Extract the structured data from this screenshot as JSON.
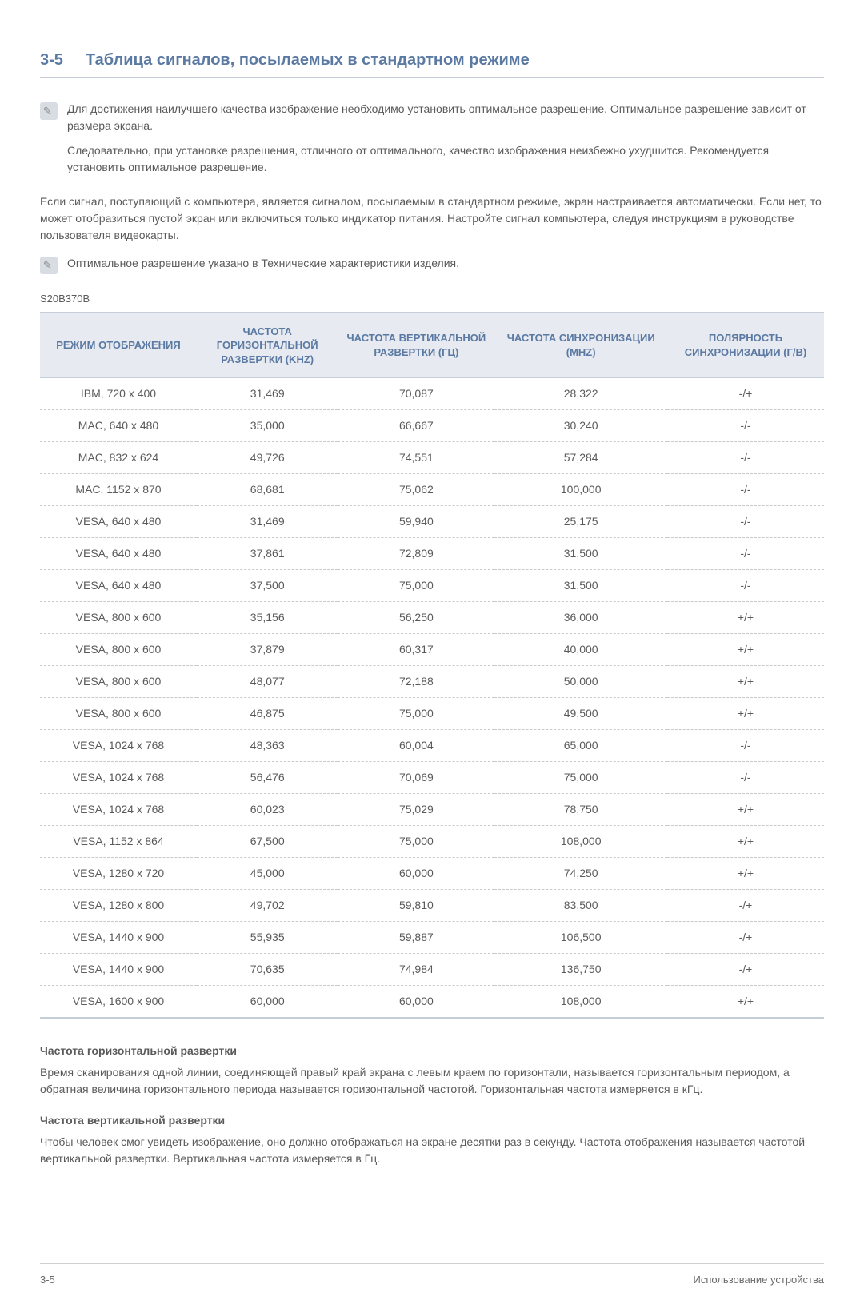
{
  "header": {
    "number": "3-5",
    "title": "Таблица сигналов, посылаемых в стандартном режиме"
  },
  "note1": {
    "p1": "Для достижения наилучшего качества изображение необходимо установить оптимальное разрешение. Оптимальное разрешение зависит от размера экрана.",
    "p2": "Следовательно, при установке разрешения, отличного от оптимального, качество изображения неизбежно ухудшится. Рекомендуется установить оптимальное разрешение."
  },
  "para1": "Если сигнал, поступающий с компьютера, является сигналом, посылаемым в стандартном режиме, экран настраивается автоматически. Если нет, то может отобразиться пустой экран или включиться только индикатор питания. Настройте сигнал компьютера, следуя инструкциям в руководстве пользователя видеокарты.",
  "note2": "Оптимальное разрешение указано в Технические характеристики изделия.",
  "model": "S20B370B",
  "table": {
    "columns": [
      "РЕЖИМ ОТОБРАЖЕНИЯ",
      "ЧАСТОТА ГОРИЗОНТАЛЬНОЙ РАЗВЕРТКИ (KHZ)",
      "ЧАСТОТА ВЕРТИКАЛЬНОЙ РАЗВЕРТКИ (ГЦ)",
      "ЧАСТОТА СИНХРОНИЗАЦИИ (MHZ)",
      "ПОЛЯРНОСТЬ СИНХРОНИЗАЦИИ (Г/В)"
    ],
    "rows": [
      [
        "IBM, 720 x 400",
        "31,469",
        "70,087",
        "28,322",
        "-/+"
      ],
      [
        "MAC, 640 x 480",
        "35,000",
        "66,667",
        "30,240",
        "-/-"
      ],
      [
        "MAC, 832 x 624",
        "49,726",
        "74,551",
        "57,284",
        "-/-"
      ],
      [
        "MAC, 1152 x 870",
        "68,681",
        "75,062",
        "100,000",
        "-/-"
      ],
      [
        "VESA, 640 x 480",
        "31,469",
        "59,940",
        "25,175",
        "-/-"
      ],
      [
        "VESA, 640 x 480",
        "37,861",
        "72,809",
        "31,500",
        "-/-"
      ],
      [
        "VESA, 640 x 480",
        "37,500",
        "75,000",
        "31,500",
        "-/-"
      ],
      [
        "VESA, 800 x 600",
        "35,156",
        "56,250",
        "36,000",
        "+/+"
      ],
      [
        "VESA, 800 x 600",
        "37,879",
        "60,317",
        "40,000",
        "+/+"
      ],
      [
        "VESA, 800 x 600",
        "48,077",
        "72,188",
        "50,000",
        "+/+"
      ],
      [
        "VESA, 800 x 600",
        "46,875",
        "75,000",
        "49,500",
        "+/+"
      ],
      [
        "VESA, 1024 x 768",
        "48,363",
        "60,004",
        "65,000",
        "-/-"
      ],
      [
        "VESA, 1024 x 768",
        "56,476",
        "70,069",
        "75,000",
        "-/-"
      ],
      [
        "VESA, 1024 x 768",
        "60,023",
        "75,029",
        "78,750",
        "+/+"
      ],
      [
        "VESA, 1152 x 864",
        "67,500",
        "75,000",
        "108,000",
        "+/+"
      ],
      [
        "VESA, 1280 x 720",
        "45,000",
        "60,000",
        "74,250",
        "+/+"
      ],
      [
        "VESA, 1280 x 800",
        "49,702",
        "59,810",
        "83,500",
        "-/+"
      ],
      [
        "VESA, 1440 x 900",
        "55,935",
        "59,887",
        "106,500",
        "-/+"
      ],
      [
        "VESA, 1440 x 900",
        "70,635",
        "74,984",
        "136,750",
        "-/+"
      ],
      [
        "VESA, 1600 x 900",
        "60,000",
        "60,000",
        "108,000",
        "+/+"
      ]
    ]
  },
  "defs": {
    "h1": "Частота горизонтальной развертки",
    "t1": "Время сканирования одной линии, соединяющей правый край экрана с левым краем по горизонтали, называется горизонтальным периодом, а обратная величина горизонтального периода называется горизонтальной частотой. Горизонтальная частота измеряется в кГц.",
    "h2": "Частота вертикальной развертки",
    "t2": "Чтобы человек смог увидеть изображение, оно должно отображаться на экране десятки раз в секунду. Частота отображения называется частотой вертикальной развертки. Вертикальная частота измеряется в Гц."
  },
  "footer": {
    "left": "3-5",
    "right": "Использование устройства"
  }
}
